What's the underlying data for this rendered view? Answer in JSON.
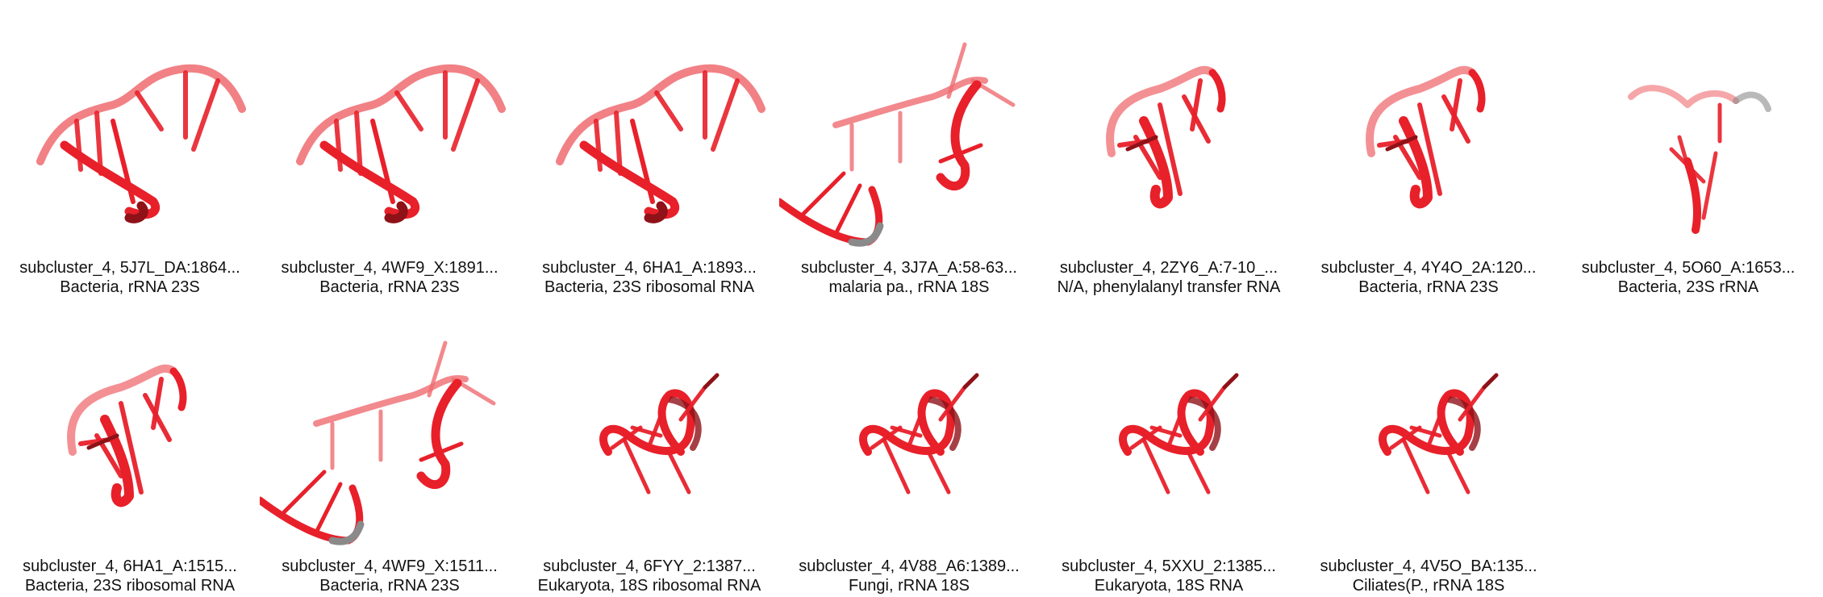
{
  "panels": [
    {
      "id": "subcluster_4, 5J7L_DA:1864...",
      "desc": "Bacteria, rRNA 23S",
      "variant": "arch",
      "accent": "#e8202a"
    },
    {
      "id": "subcluster_4, 4WF9_X:1891...",
      "desc": "Bacteria, rRNA 23S",
      "variant": "arch",
      "accent": "#e8202a"
    },
    {
      "id": "subcluster_4, 6HA1_A:1893...",
      "desc": "Bacteria, 23S ribosomal RNA",
      "variant": "arch",
      "accent": "#e8202a"
    },
    {
      "id": "subcluster_4, 3J7A_A:58-63...",
      "desc": "malaria pa., rRNA 18S",
      "variant": "open",
      "accent": "#e8202a"
    },
    {
      "id": "subcluster_4, 2ZY6_A:7-10_...",
      "desc": "N/A, phenylalanyl transfer RNA",
      "variant": "hook",
      "accent": "#e8202a"
    },
    {
      "id": "subcluster_4, 4Y4O_2A:120...",
      "desc": "Bacteria, rRNA 23S",
      "variant": "hook",
      "accent": "#e8202a"
    },
    {
      "id": "subcluster_4, 5O60_A:1653...",
      "desc": "Bacteria, 23S rRNA",
      "variant": "gray",
      "accent": "#e8202a"
    },
    {
      "id": "subcluster_4, 6HA1_A:1515...",
      "desc": "Bacteria, 23S ribosomal RNA",
      "variant": "hook",
      "accent": "#e8202a"
    },
    {
      "id": "subcluster_4, 4WF9_X:1511...",
      "desc": "Bacteria, rRNA 23S",
      "variant": "open",
      "accent": "#e8202a"
    },
    {
      "id": "subcluster_4, 6FYY_2:1387...",
      "desc": "Eukaryota, 18S ribosomal RNA",
      "variant": "loop",
      "accent": "#e8202a"
    },
    {
      "id": "subcluster_4, 4V88_A6:1389...",
      "desc": "Fungi, rRNA 18S",
      "variant": "loop",
      "accent": "#e8202a"
    },
    {
      "id": "subcluster_4, 5XXU_2:1385...",
      "desc": "Eukaryota, 18S RNA",
      "variant": "loop",
      "accent": "#e8202a"
    },
    {
      "id": "subcluster_4, 4V5O_BA:135...",
      "desc": "Ciliates(P., rRNA 18S",
      "variant": "loop",
      "accent": "#e8202a"
    }
  ]
}
